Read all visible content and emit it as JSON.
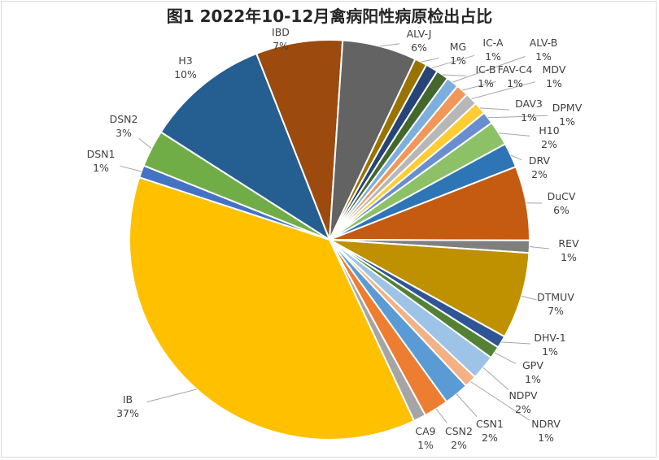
{
  "chart_data": {
    "type": "pie",
    "title": "图1 2022年10-12月禽病阳性病原检出占比",
    "slices": [
      {
        "name": "IBD",
        "value": 7,
        "pct": "7%",
        "color": "#9C4A0E"
      },
      {
        "name": "ALV-J",
        "value": 6,
        "pct": "6%",
        "color": "#636363"
      },
      {
        "name": "MG",
        "value": 1,
        "pct": "1%",
        "color": "#997300"
      },
      {
        "name": "IC-A",
        "value": 1,
        "pct": "1%",
        "color": "#264478"
      },
      {
        "name": "IC-B",
        "value": 1,
        "pct": "1%",
        "color": "#43682B"
      },
      {
        "name": "ALV-B",
        "value": 1,
        "pct": "1%",
        "color": "#7CAFDD"
      },
      {
        "name": "FAV-C4",
        "value": 1,
        "pct": "1%",
        "color": "#F1975A"
      },
      {
        "name": "MDV",
        "value": 1,
        "pct": "1%",
        "color": "#B7B7B7"
      },
      {
        "name": "DAV3",
        "value": 1,
        "pct": "1%",
        "color": "#FFCD33"
      },
      {
        "name": "DPMV",
        "value": 1,
        "pct": "1%",
        "color": "#698ED0"
      },
      {
        "name": "H10",
        "value": 2,
        "pct": "2%",
        "color": "#8CC168"
      },
      {
        "name": "DRV",
        "value": 2,
        "pct": "2%",
        "color": "#2E75B6"
      },
      {
        "name": "DuCV",
        "value": 6,
        "pct": "6%",
        "color": "#C55A11"
      },
      {
        "name": "REV",
        "value": 1,
        "pct": "1%",
        "color": "#7F7F7F"
      },
      {
        "name": "DTMUV",
        "value": 7,
        "pct": "7%",
        "color": "#BF9000"
      },
      {
        "name": "DHV-1",
        "value": 1,
        "pct": "1%",
        "color": "#2F5597"
      },
      {
        "name": "GPV",
        "value": 1,
        "pct": "1%",
        "color": "#548235"
      },
      {
        "name": "NDPV",
        "value": 2,
        "pct": "2%",
        "color": "#9DC3E6"
      },
      {
        "name": "NDRV",
        "value": 1,
        "pct": "1%",
        "color": "#F4B183"
      },
      {
        "name": "CSN1",
        "value": 2,
        "pct": "2%",
        "color": "#5B9BD5"
      },
      {
        "name": "CSN2",
        "value": 2,
        "pct": "2%",
        "color": "#ED7D31"
      },
      {
        "name": "CA9",
        "value": 1,
        "pct": "1%",
        "color": "#A5A5A5"
      },
      {
        "name": "IB",
        "value": 37,
        "pct": "37%",
        "color": "#FFC000"
      },
      {
        "name": "DSN1",
        "value": 1,
        "pct": "1%",
        "color": "#4472C4"
      },
      {
        "name": "DSN2",
        "value": 3,
        "pct": "3%",
        "color": "#70AD47"
      },
      {
        "name": "H3",
        "value": 10,
        "pct": "10%",
        "color": "#255E91"
      }
    ],
    "legend": "none",
    "label_style": "outside with leader lines"
  }
}
